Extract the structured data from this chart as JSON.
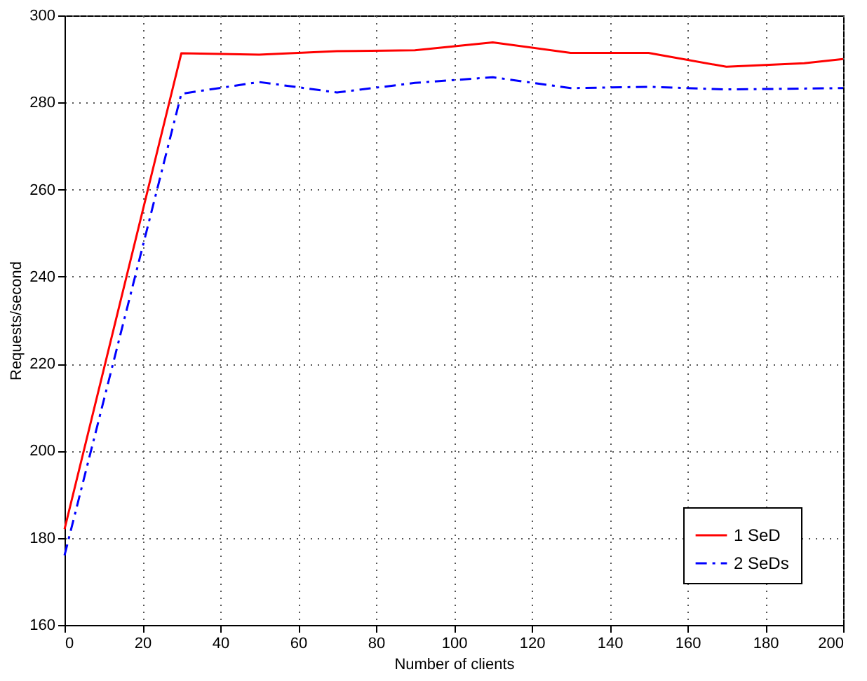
{
  "chart_data": {
    "type": "line",
    "xlabel": "Number of clients",
    "ylabel": "Requests/second",
    "x": [
      0,
      30,
      50,
      70,
      90,
      110,
      130,
      150,
      170,
      190,
      200
    ],
    "series": [
      {
        "name": "1 SeD",
        "color": "#ff0000",
        "line_style": "solid",
        "values": [
          182,
          291.3,
          291,
          291.8,
          292,
          293.8,
          291.4,
          291.4,
          288.2,
          289,
          290
        ]
      },
      {
        "name": "2 SeDs",
        "color": "#0000ff",
        "line_style": "dashed",
        "values": [
          176,
          282,
          284.7,
          282.3,
          284.5,
          285.8,
          283.3,
          283.6,
          283,
          283.2,
          283.3
        ]
      }
    ],
    "xlim": [
      0,
      200
    ],
    "xticks": [
      0,
      20,
      40,
      60,
      80,
      100,
      120,
      140,
      160,
      180,
      200
    ],
    "ylim": [
      160,
      300
    ],
    "yticks": [
      160,
      180,
      200,
      220,
      240,
      260,
      280,
      300
    ],
    "grid": true,
    "legend": "bottom right",
    "marker": "none"
  }
}
